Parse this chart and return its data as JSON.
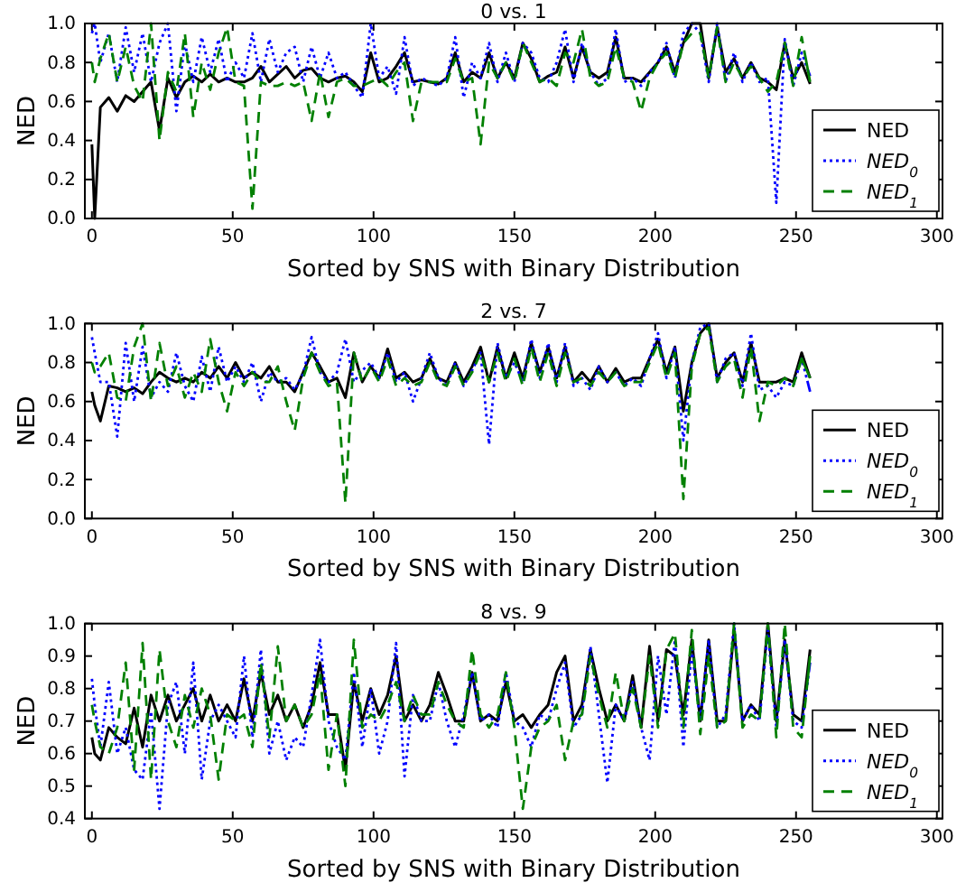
{
  "chart_data": [
    {
      "type": "line",
      "title": "0 vs. 1",
      "xlabel": "Sorted by SNS with Binary Distribution",
      "ylabel": "NED",
      "legend": "bottom right",
      "grid": false,
      "x": [
        0,
        1,
        3,
        6,
        9,
        12,
        15,
        18,
        21,
        24,
        27,
        30,
        33,
        36,
        39,
        42,
        45,
        48,
        51,
        54,
        57,
        60,
        63,
        66,
        69,
        72,
        75,
        78,
        81,
        84,
        87,
        90,
        93,
        96,
        99,
        102,
        105,
        108,
        111,
        114,
        117,
        120,
        123,
        126,
        129,
        132,
        135,
        138,
        141,
        144,
        147,
        150,
        153,
        156,
        159,
        162,
        165,
        168,
        171,
        174,
        177,
        180,
        183,
        186,
        189,
        192,
        195,
        198,
        201,
        204,
        207,
        210,
        213,
        216,
        219,
        222,
        225,
        228,
        231,
        234,
        237,
        240,
        243,
        246,
        249,
        252,
        255
      ],
      "xlim": [
        -2.5,
        302
      ],
      "xticks": [
        0,
        50,
        100,
        150,
        200,
        250,
        300
      ],
      "ylim": [
        0,
        1
      ],
      "yticks": [
        {
          "value": 0,
          "label": "0.0"
        },
        {
          "value": 0.2,
          "label": "0.2"
        },
        {
          "value": 0.4,
          "label": "0.4"
        },
        {
          "value": 0.6,
          "label": "0.6"
        },
        {
          "value": 0.8,
          "label": "0.8"
        },
        {
          "value": 1,
          "label": "1.0"
        }
      ],
      "series": [
        {
          "name": "NED",
          "color": "#000000",
          "line_style": "solid",
          "values": [
            0.38,
            0.0,
            0.57,
            0.62,
            0.55,
            0.63,
            0.6,
            0.65,
            0.7,
            0.45,
            0.72,
            0.62,
            0.7,
            0.73,
            0.7,
            0.74,
            0.7,
            0.72,
            0.7,
            0.7,
            0.72,
            0.78,
            0.7,
            0.74,
            0.78,
            0.72,
            0.76,
            0.77,
            0.72,
            0.7,
            0.72,
            0.73,
            0.7,
            0.65,
            0.85,
            0.7,
            0.72,
            0.78,
            0.85,
            0.7,
            0.71,
            0.7,
            0.69,
            0.72,
            0.85,
            0.7,
            0.75,
            0.72,
            0.85,
            0.72,
            0.8,
            0.72,
            0.9,
            0.82,
            0.7,
            0.73,
            0.75,
            0.88,
            0.72,
            0.88,
            0.75,
            0.72,
            0.75,
            0.93,
            0.72,
            0.72,
            0.7,
            0.75,
            0.8,
            0.88,
            0.75,
            0.9,
            1.0,
            1.0,
            0.72,
            0.98,
            0.75,
            0.82,
            0.72,
            0.8,
            0.72,
            0.7,
            0.66,
            0.9,
            0.72,
            0.8,
            0.69
          ]
        },
        {
          "name": "NED$_{0}$",
          "color": "#0000ff",
          "line_style": "dotted",
          "values": [
            0.95,
            1.0,
            0.8,
            0.95,
            0.7,
            0.98,
            0.75,
            0.95,
            0.7,
            0.9,
            1.0,
            0.55,
            0.9,
            0.7,
            0.93,
            0.75,
            0.92,
            0.7,
            0.8,
            0.72,
            0.95,
            0.7,
            0.92,
            0.75,
            0.85,
            0.88,
            0.7,
            0.88,
            0.72,
            0.85,
            0.72,
            0.75,
            0.68,
            0.62,
            1.0,
            0.72,
            0.78,
            0.64,
            0.93,
            0.68,
            0.72,
            0.7,
            0.68,
            0.72,
            0.93,
            0.62,
            0.8,
            0.72,
            0.9,
            0.7,
            0.85,
            0.7,
            0.9,
            0.85,
            0.72,
            0.7,
            0.8,
            0.97,
            0.7,
            0.9,
            0.75,
            0.68,
            0.72,
            0.97,
            0.7,
            0.72,
            0.68,
            0.75,
            0.8,
            0.9,
            0.72,
            0.95,
            1.0,
            0.95,
            0.7,
            1.0,
            0.7,
            0.85,
            0.7,
            0.8,
            0.7,
            0.72,
            0.08,
            0.92,
            0.68,
            0.85,
            0.73
          ]
        },
        {
          "name": "NED$_{1}$",
          "color": "#008000",
          "line_style": "dashed",
          "values": [
            0.8,
            0.7,
            0.82,
            0.95,
            0.7,
            0.88,
            0.68,
            0.6,
            1.0,
            0.4,
            0.75,
            0.65,
            0.95,
            0.52,
            0.8,
            0.66,
            0.85,
            0.98,
            0.7,
            0.68,
            0.05,
            0.7,
            0.68,
            0.68,
            0.7,
            0.68,
            0.7,
            0.5,
            0.75,
            0.52,
            0.7,
            0.72,
            0.68,
            0.68,
            0.7,
            0.72,
            0.68,
            0.75,
            0.8,
            0.5,
            0.7,
            0.7,
            0.7,
            0.7,
            0.82,
            0.7,
            0.72,
            0.38,
            0.8,
            0.72,
            0.8,
            0.7,
            0.9,
            0.8,
            0.7,
            0.72,
            0.68,
            0.85,
            0.8,
            0.97,
            0.72,
            0.68,
            0.7,
            0.88,
            0.72,
            0.7,
            0.55,
            0.72,
            0.8,
            0.85,
            0.72,
            0.9,
            0.95,
            0.95,
            0.72,
            0.98,
            0.7,
            0.8,
            0.72,
            0.78,
            0.72,
            0.65,
            0.7,
            0.9,
            0.68,
            0.93,
            0.7
          ]
        }
      ]
    },
    {
      "type": "line",
      "title": "2 vs. 7",
      "xlabel": "Sorted by SNS with Binary Distribution",
      "ylabel": "NED",
      "legend": "bottom right",
      "grid": false,
      "x": [
        0,
        1,
        3,
        6,
        9,
        12,
        15,
        18,
        21,
        24,
        27,
        30,
        33,
        36,
        39,
        42,
        45,
        48,
        51,
        54,
        57,
        60,
        63,
        66,
        69,
        72,
        75,
        78,
        81,
        84,
        87,
        90,
        93,
        96,
        99,
        102,
        105,
        108,
        111,
        114,
        117,
        120,
        123,
        126,
        129,
        132,
        135,
        138,
        141,
        144,
        147,
        150,
        153,
        156,
        159,
        162,
        165,
        168,
        171,
        174,
        177,
        180,
        183,
        186,
        189,
        192,
        195,
        198,
        201,
        204,
        207,
        210,
        213,
        216,
        219,
        222,
        225,
        228,
        231,
        234,
        237,
        240,
        243,
        246,
        249,
        252,
        255
      ],
      "xlim": [
        -2.5,
        302
      ],
      "xticks": [
        0,
        50,
        100,
        150,
        200,
        250,
        300
      ],
      "ylim": [
        0,
        1
      ],
      "yticks": [
        {
          "value": 0,
          "label": "0.0"
        },
        {
          "value": 0.2,
          "label": "0.2"
        },
        {
          "value": 0.4,
          "label": "0.4"
        },
        {
          "value": 0.6,
          "label": "0.6"
        },
        {
          "value": 0.8,
          "label": "0.8"
        },
        {
          "value": 1,
          "label": "1.0"
        }
      ],
      "series": [
        {
          "name": "NED",
          "color": "#000000",
          "line_style": "solid",
          "values": [
            0.65,
            0.58,
            0.5,
            0.68,
            0.67,
            0.65,
            0.67,
            0.64,
            0.7,
            0.75,
            0.72,
            0.7,
            0.72,
            0.7,
            0.75,
            0.72,
            0.78,
            0.72,
            0.8,
            0.72,
            0.75,
            0.72,
            0.78,
            0.7,
            0.7,
            0.65,
            0.75,
            0.85,
            0.78,
            0.7,
            0.72,
            0.62,
            0.85,
            0.7,
            0.78,
            0.72,
            0.87,
            0.72,
            0.75,
            0.7,
            0.72,
            0.82,
            0.72,
            0.7,
            0.8,
            0.7,
            0.78,
            0.88,
            0.7,
            0.88,
            0.72,
            0.85,
            0.72,
            0.9,
            0.75,
            0.88,
            0.72,
            0.88,
            0.7,
            0.75,
            0.7,
            0.78,
            0.7,
            0.77,
            0.7,
            0.72,
            0.72,
            0.82,
            0.92,
            0.75,
            0.88,
            0.55,
            0.8,
            0.95,
            1.0,
            0.72,
            0.8,
            0.85,
            0.7,
            0.9,
            0.7,
            0.7,
            0.7,
            0.72,
            0.7,
            0.85,
            0.72
          ]
        },
        {
          "name": "NED$_{0}$",
          "color": "#0000ff",
          "line_style": "dotted",
          "values": [
            0.93,
            0.85,
            0.7,
            0.7,
            0.42,
            0.9,
            0.6,
            0.88,
            0.62,
            0.7,
            0.65,
            0.85,
            0.68,
            0.6,
            0.83,
            0.65,
            0.88,
            0.7,
            0.78,
            0.7,
            0.8,
            0.6,
            0.75,
            0.7,
            0.72,
            0.66,
            0.74,
            0.93,
            0.75,
            0.7,
            0.75,
            0.92,
            0.7,
            0.76,
            0.8,
            0.72,
            0.85,
            0.7,
            0.75,
            0.6,
            0.72,
            0.85,
            0.72,
            0.68,
            0.8,
            0.68,
            0.76,
            0.85,
            0.38,
            0.9,
            0.72,
            0.8,
            0.7,
            0.92,
            0.72,
            0.9,
            0.7,
            0.9,
            0.68,
            0.72,
            0.66,
            0.78,
            0.7,
            0.75,
            0.68,
            0.72,
            0.68,
            0.82,
            0.95,
            0.72,
            0.88,
            0.4,
            0.8,
            0.98,
            1.0,
            0.7,
            0.82,
            0.85,
            0.68,
            0.95,
            0.66,
            0.68,
            0.62,
            0.7,
            0.68,
            0.82,
            0.65
          ]
        },
        {
          "name": "NED$_{1}$",
          "color": "#008000",
          "line_style": "dashed",
          "values": [
            0.8,
            0.75,
            0.78,
            0.85,
            0.62,
            0.6,
            0.88,
            1.0,
            0.6,
            0.9,
            0.68,
            0.78,
            0.62,
            0.75,
            0.65,
            0.92,
            0.7,
            0.55,
            0.75,
            0.68,
            0.75,
            0.7,
            0.7,
            0.78,
            0.6,
            0.45,
            0.72,
            0.85,
            0.75,
            0.68,
            0.7,
            0.08,
            0.85,
            0.7,
            0.78,
            0.7,
            0.82,
            0.68,
            0.72,
            0.68,
            0.7,
            0.8,
            0.7,
            0.68,
            0.78,
            0.68,
            0.75,
            0.85,
            0.7,
            0.85,
            0.7,
            0.82,
            0.68,
            0.88,
            0.7,
            0.85,
            0.68,
            0.85,
            0.7,
            0.72,
            0.68,
            0.75,
            0.7,
            0.75,
            0.68,
            0.7,
            0.7,
            0.8,
            0.9,
            0.72,
            0.85,
            0.1,
            0.78,
            0.95,
            0.98,
            0.7,
            0.78,
            0.82,
            0.62,
            0.88,
            0.5,
            0.7,
            0.68,
            0.72,
            0.68,
            0.82,
            0.72
          ]
        }
      ]
    },
    {
      "type": "line",
      "title": "8 vs. 9",
      "xlabel": "Sorted by SNS with Binary Distribution",
      "ylabel": "NED",
      "legend": "bottom right",
      "grid": false,
      "x": [
        0,
        1,
        3,
        6,
        9,
        12,
        15,
        18,
        21,
        24,
        27,
        30,
        33,
        36,
        39,
        42,
        45,
        48,
        51,
        54,
        57,
        60,
        63,
        66,
        69,
        72,
        75,
        78,
        81,
        84,
        87,
        90,
        93,
        96,
        99,
        102,
        105,
        108,
        111,
        114,
        117,
        120,
        123,
        126,
        129,
        132,
        135,
        138,
        141,
        144,
        147,
        150,
        153,
        156,
        159,
        162,
        165,
        168,
        171,
        174,
        177,
        180,
        183,
        186,
        189,
        192,
        195,
        198,
        201,
        204,
        207,
        210,
        213,
        216,
        219,
        222,
        225,
        228,
        231,
        234,
        237,
        240,
        243,
        246,
        249,
        252,
        255
      ],
      "xlim": [
        -2.5,
        302
      ],
      "xticks": [
        0,
        50,
        100,
        150,
        200,
        250,
        300
      ],
      "ylim": [
        0.4,
        1
      ],
      "yticks": [
        0.4,
        0.5,
        0.6,
        0.7,
        0.8,
        0.9,
        {
          "value": 1,
          "label": "1.0"
        }
      ],
      "series": [
        {
          "name": "NED",
          "color": "#000000",
          "line_style": "solid",
          "values": [
            0.65,
            0.6,
            0.58,
            0.68,
            0.65,
            0.63,
            0.74,
            0.62,
            0.78,
            0.7,
            0.78,
            0.7,
            0.75,
            0.8,
            0.7,
            0.78,
            0.7,
            0.75,
            0.7,
            0.83,
            0.7,
            0.85,
            0.72,
            0.78,
            0.7,
            0.75,
            0.68,
            0.75,
            0.88,
            0.72,
            0.72,
            0.55,
            0.82,
            0.7,
            0.8,
            0.72,
            0.78,
            0.9,
            0.7,
            0.75,
            0.7,
            0.75,
            0.85,
            0.78,
            0.7,
            0.7,
            0.85,
            0.7,
            0.72,
            0.7,
            0.82,
            0.7,
            0.72,
            0.68,
            0.72,
            0.75,
            0.85,
            0.9,
            0.7,
            0.75,
            0.92,
            0.8,
            0.7,
            0.75,
            0.7,
            0.84,
            0.68,
            0.93,
            0.7,
            0.92,
            0.9,
            0.72,
            0.95,
            0.7,
            0.95,
            0.7,
            0.7,
            0.98,
            0.7,
            0.75,
            0.72,
            1.0,
            0.7,
            0.95,
            0.72,
            0.7,
            0.92
          ]
        },
        {
          "name": "NED$_{0}$",
          "color": "#0000ff",
          "line_style": "dotted",
          "values": [
            0.83,
            0.75,
            0.62,
            0.82,
            0.6,
            0.68,
            0.55,
            0.52,
            0.73,
            0.43,
            0.75,
            0.82,
            0.6,
            0.88,
            0.52,
            0.7,
            0.75,
            0.7,
            0.65,
            0.9,
            0.65,
            0.92,
            0.6,
            0.7,
            0.58,
            0.65,
            0.62,
            0.78,
            0.95,
            0.7,
            0.62,
            0.58,
            0.85,
            0.62,
            0.8,
            0.6,
            0.7,
            0.94,
            0.53,
            0.78,
            0.7,
            0.7,
            0.82,
            0.7,
            0.62,
            0.72,
            0.85,
            0.7,
            0.72,
            0.68,
            0.85,
            0.7,
            0.68,
            0.62,
            0.72,
            0.7,
            0.8,
            0.88,
            0.68,
            0.72,
            0.93,
            0.72,
            0.51,
            0.75,
            0.7,
            0.82,
            0.68,
            0.58,
            0.9,
            0.72,
            0.95,
            0.62,
            0.92,
            0.7,
            0.95,
            0.68,
            0.72,
            1.0,
            0.7,
            0.75,
            0.7,
            0.98,
            0.68,
            0.95,
            0.7,
            0.68,
            0.88
          ]
        },
        {
          "name": "NED$_{1}$",
          "color": "#008000",
          "line_style": "dashed",
          "values": [
            0.75,
            0.7,
            0.62,
            0.6,
            0.68,
            0.88,
            0.55,
            0.94,
            0.52,
            0.92,
            0.7,
            0.62,
            0.78,
            0.68,
            0.8,
            0.72,
            0.52,
            0.72,
            0.7,
            0.72,
            0.62,
            0.88,
            0.65,
            0.93,
            0.7,
            0.75,
            0.68,
            0.72,
            0.85,
            0.55,
            0.72,
            0.5,
            0.95,
            0.68,
            0.72,
            0.7,
            0.75,
            0.82,
            0.7,
            0.78,
            0.72,
            0.72,
            0.82,
            0.75,
            0.7,
            0.68,
            0.92,
            0.72,
            0.68,
            0.72,
            0.85,
            0.68,
            0.43,
            0.62,
            0.68,
            0.7,
            0.75,
            0.58,
            0.7,
            0.72,
            0.9,
            0.78,
            0.68,
            0.85,
            0.7,
            0.8,
            0.68,
            0.9,
            0.68,
            0.92,
            0.97,
            0.68,
            0.98,
            0.66,
            0.9,
            0.68,
            0.7,
            1.0,
            0.68,
            0.72,
            0.7,
            1.0,
            0.65,
            1.0,
            0.68,
            0.65,
            0.9
          ]
        }
      ]
    }
  ]
}
